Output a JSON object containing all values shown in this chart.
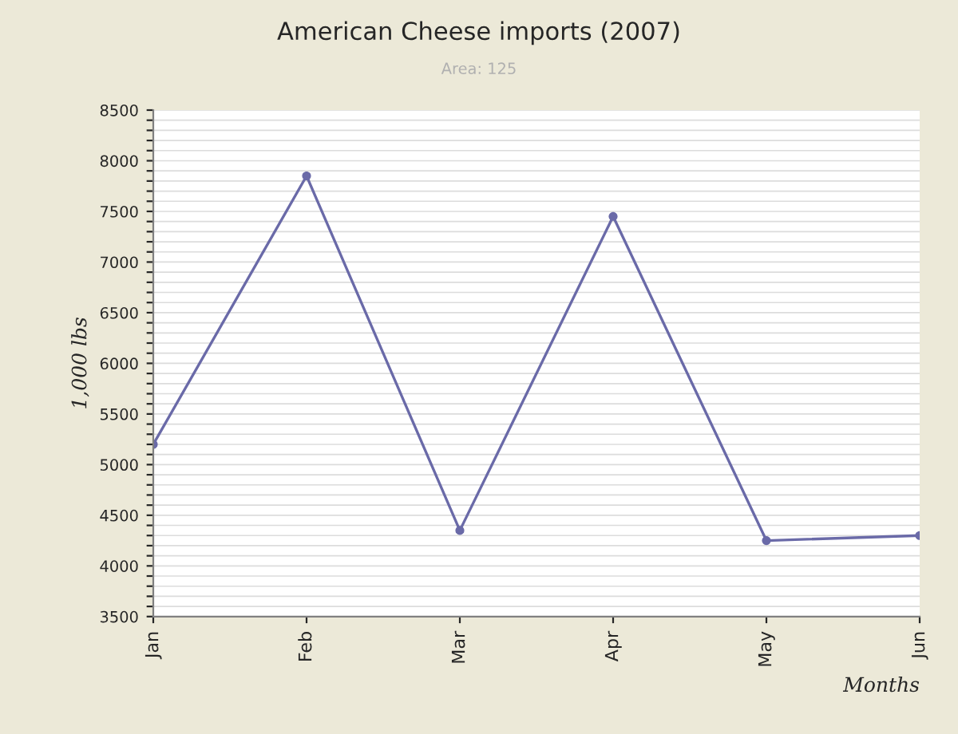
{
  "chart_data": {
    "type": "line",
    "title": "American Cheese imports (2007)",
    "subtitle": "Area: 125",
    "xlabel": "Months",
    "ylabel": "1,000 lbs",
    "categories": [
      "Jan",
      "Feb",
      "Mar",
      "Apr",
      "May",
      "Jun"
    ],
    "series": [
      {
        "color": "#6a6aa8",
        "values": [
          5200,
          7850,
          4350,
          7450,
          4250,
          4300
        ]
      }
    ],
    "ylim": [
      3500,
      8500
    ],
    "yticks": [
      3500,
      {
        "value": 3600,
        "label": null
      },
      {
        "value": 3700,
        "label": null
      },
      {
        "value": 3800,
        "label": null
      },
      {
        "value": 3900,
        "label": null
      },
      4000,
      {
        "value": 4100,
        "label": null
      },
      {
        "value": 4200,
        "label": null
      },
      {
        "value": 4300,
        "label": null
      },
      {
        "value": 4400,
        "label": null
      },
      4500,
      {
        "value": 4600,
        "label": null
      },
      {
        "value": 4700,
        "label": null
      },
      {
        "value": 4800,
        "label": null
      },
      {
        "value": 4900,
        "label": null
      },
      5000,
      {
        "value": 5100,
        "label": null
      },
      {
        "value": 5200,
        "label": null
      },
      {
        "value": 5300,
        "label": null
      },
      {
        "value": 5400,
        "label": null
      },
      5500,
      {
        "value": 5600,
        "label": null
      },
      {
        "value": 5700,
        "label": null
      },
      {
        "value": 5800,
        "label": null
      },
      {
        "value": 5900,
        "label": null
      },
      6000,
      {
        "value": 6100,
        "label": null
      },
      {
        "value": 6200,
        "label": null
      },
      {
        "value": 6300,
        "label": null
      },
      {
        "value": 6400,
        "label": null
      },
      6500,
      {
        "value": 6600,
        "label": null
      },
      {
        "value": 6700,
        "label": null
      },
      {
        "value": 6800,
        "label": null
      },
      {
        "value": 6900,
        "label": null
      },
      7000,
      {
        "value": 7100,
        "label": null
      },
      {
        "value": 7200,
        "label": null
      },
      {
        "value": 7300,
        "label": null
      },
      {
        "value": 7400,
        "label": null
      },
      7500,
      {
        "value": 7600,
        "label": null
      },
      {
        "value": 7700,
        "label": null
      },
      {
        "value": 7800,
        "label": null
      },
      {
        "value": 7900,
        "label": null
      },
      8000,
      {
        "value": 8100,
        "label": null
      },
      {
        "value": 8200,
        "label": null
      },
      {
        "value": 8300,
        "label": null
      },
      {
        "value": 8400,
        "label": null
      },
      8500
    ],
    "grid": "y",
    "marker": "circle",
    "line_style": "solid",
    "legend": false
  }
}
